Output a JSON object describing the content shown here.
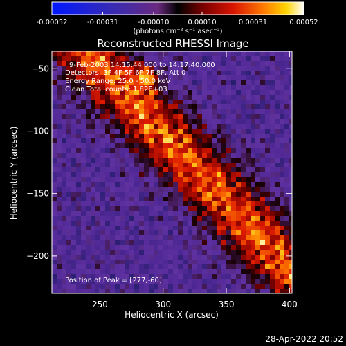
{
  "chart_data": {
    "type": "heatmap",
    "title": "Reconstructed RHESSI Image",
    "xlabel": "Heliocentric X (arcsec)",
    "ylabel": "Heliocentric Y (arcsec)",
    "xlim": [
      212,
      402
    ],
    "ylim": [
      -230,
      -36
    ],
    "x_ticks": [
      250,
      300,
      350,
      400
    ],
    "y_ticks": [
      -50,
      -100,
      -150,
      -200
    ],
    "colorbar": {
      "ticks": [
        "-0.00052",
        "-0.00031",
        "-0.00010",
        "0.00010",
        "0.00031",
        "0.00052"
      ],
      "tick_values": [
        -0.00052,
        -0.00031,
        -0.0001,
        0.0001,
        0.00031,
        0.00052
      ],
      "range": [
        -0.00052,
        0.00052
      ],
      "unit_label": "(photons cm⁻² s⁻¹ asec⁻²)"
    },
    "annotations": {
      "time": "9-Feb-2003 14:15:44.000 to 14:17:40.000",
      "detectors": "Detectors: 3F 4F 5F 6F 7F 8F, Att 0",
      "energy": "Energy Range: 25.0 - 50.0 keV",
      "clean": "Clean     Total counts: 1.82E+03",
      "peak": "Position of Peak = [277,-60]"
    },
    "peak_position": [
      277,
      -60
    ]
  },
  "footer": {
    "timestamp": "28-Apr-2022 20:52"
  }
}
